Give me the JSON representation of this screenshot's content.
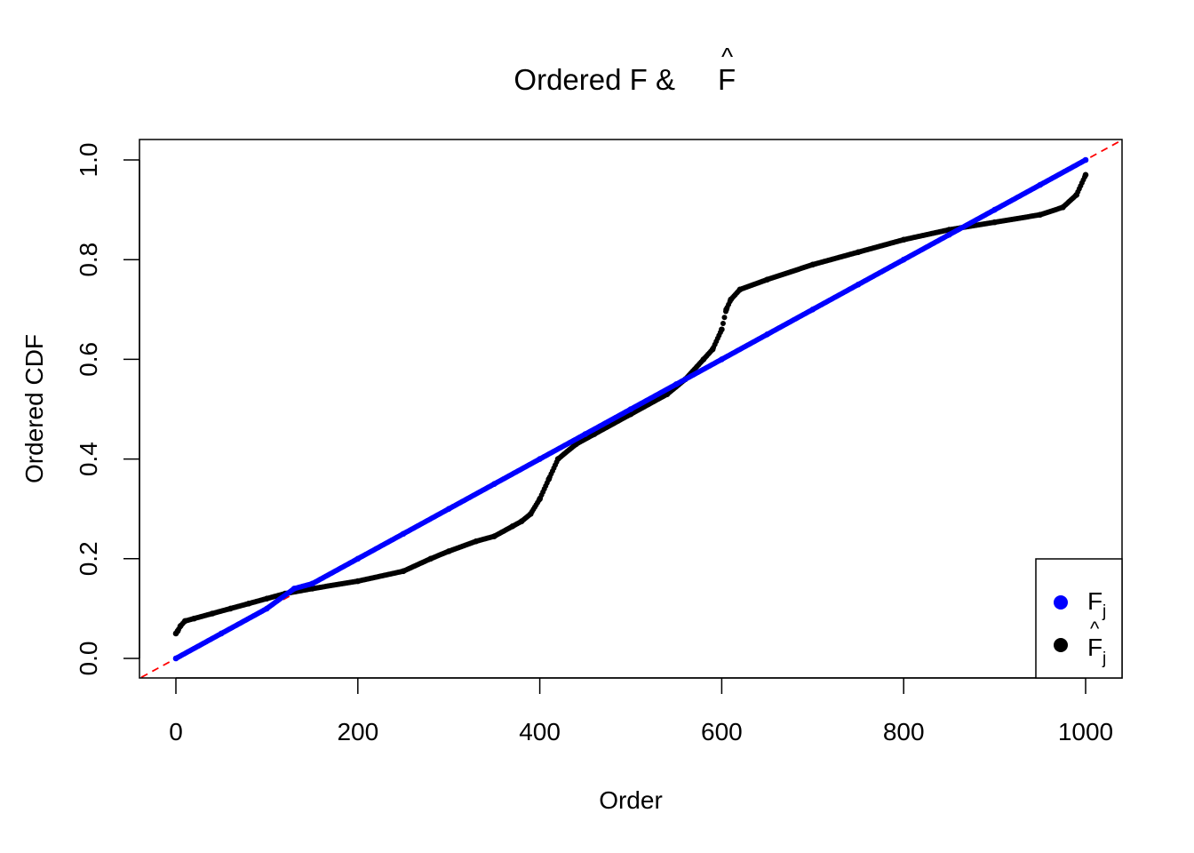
{
  "chart_data": {
    "type": "scatter",
    "title": "Ordered F & F̂",
    "title_text": "Ordered F &",
    "title_hat_symbol": "F",
    "xlabel": "Order",
    "ylabel": "Ordered CDF",
    "xlim": [
      0,
      1000
    ],
    "ylim": [
      0,
      1
    ],
    "x_ticks": [
      "0",
      "200",
      "400",
      "600",
      "800",
      "1000"
    ],
    "y_ticks": [
      "0.0",
      "0.2",
      "0.4",
      "0.6",
      "0.8",
      "1.0"
    ],
    "grid": false,
    "legend_position": "bottom-right",
    "reference_line": {
      "slope": 0.001,
      "intercept": 0,
      "color": "#ff0000",
      "style": "dashed"
    },
    "series": [
      {
        "name": "F_j",
        "legend_symbol": "F",
        "legend_subscript": "j",
        "legend_hat": false,
        "color": "#0000ff",
        "x": [
          0,
          50,
          100,
          130,
          150,
          200,
          250,
          300,
          350,
          400,
          450,
          500,
          550,
          600,
          650,
          700,
          750,
          800,
          850,
          900,
          950,
          1000
        ],
        "y": [
          0.0,
          0.05,
          0.1,
          0.14,
          0.15,
          0.2,
          0.25,
          0.3,
          0.35,
          0.4,
          0.45,
          0.5,
          0.55,
          0.6,
          0.65,
          0.7,
          0.75,
          0.8,
          0.85,
          0.9,
          0.95,
          1.0
        ]
      },
      {
        "name": "F̂_j",
        "legend_symbol": "F",
        "legend_subscript": "j",
        "legend_hat": true,
        "color": "#000000",
        "x": [
          0,
          2,
          5,
          10,
          20,
          40,
          60,
          80,
          100,
          120,
          150,
          200,
          250,
          280,
          300,
          330,
          350,
          370,
          380,
          390,
          400,
          410,
          420,
          440,
          460,
          500,
          540,
          560,
          580,
          590,
          600,
          605,
          610,
          620,
          650,
          700,
          750,
          800,
          850,
          900,
          950,
          975,
          990,
          1000
        ],
        "y": [
          0.05,
          0.055,
          0.065,
          0.075,
          0.08,
          0.09,
          0.1,
          0.11,
          0.12,
          0.13,
          0.14,
          0.155,
          0.175,
          0.2,
          0.215,
          0.235,
          0.245,
          0.265,
          0.275,
          0.29,
          0.32,
          0.36,
          0.4,
          0.43,
          0.45,
          0.49,
          0.53,
          0.56,
          0.6,
          0.62,
          0.66,
          0.7,
          0.72,
          0.74,
          0.76,
          0.79,
          0.815,
          0.84,
          0.86,
          0.875,
          0.89,
          0.905,
          0.93,
          0.97
        ]
      }
    ]
  }
}
